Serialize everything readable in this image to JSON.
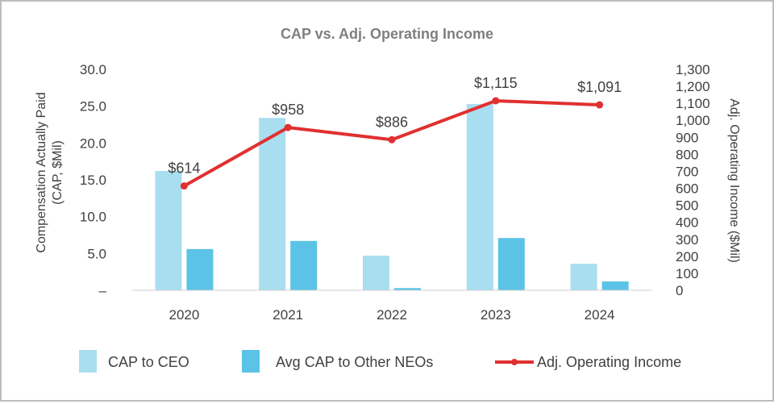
{
  "chart_data": {
    "type": "bar",
    "title": "CAP vs. Adj. Operating Income",
    "categories": [
      "2020",
      "2021",
      "2022",
      "2023",
      "2024"
    ],
    "series": [
      {
        "name": "CAP to CEO",
        "type": "bar",
        "axis": "left",
        "color": "#a8def0",
        "values": [
          16.2,
          23.4,
          4.7,
          25.3,
          3.6
        ]
      },
      {
        "name": "Avg CAP to Other NEOs",
        "type": "bar",
        "axis": "left",
        "color": "#5bc3e6",
        "values": [
          5.6,
          6.7,
          0.3,
          7.1,
          1.2
        ]
      },
      {
        "name": "Adj. Operating Income",
        "type": "line",
        "axis": "right",
        "color": "#e03030",
        "values": [
          614,
          958,
          886,
          1115,
          1091
        ],
        "labels": [
          "$614",
          "$958",
          "$886",
          "$1,115",
          "$1,091"
        ]
      }
    ],
    "y_left": {
      "label_lines": [
        "Compensation Actually Paid",
        "(CAP, $Mil)"
      ],
      "ylim": [
        0,
        30
      ],
      "ticks": [
        0,
        5,
        10,
        15,
        20,
        25,
        30
      ],
      "tick_labels": [
        "–",
        "5.0",
        "10.0",
        "15.0",
        "20.0",
        "25.0",
        "30.0"
      ]
    },
    "y_right": {
      "label": "Adj. Operating Income ($Mil)",
      "ylim": [
        0,
        1300
      ],
      "ticks": [
        0,
        100,
        200,
        300,
        400,
        500,
        600,
        700,
        800,
        900,
        1000,
        1100,
        1200,
        1300
      ],
      "tick_labels": [
        "0",
        "100",
        "200",
        "300",
        "400",
        "500",
        "600",
        "700",
        "800",
        "900",
        "1,000",
        "1,100",
        "1,200",
        "1,300"
      ]
    },
    "grid": false,
    "legend": {
      "position": "bottom",
      "items": [
        "CAP to CEO",
        "Avg CAP to Other NEOs",
        "Adj. Operating Income"
      ]
    }
  },
  "colors": {
    "title": "#7f7f7f",
    "text": "#404040",
    "baseline": "#d0d0d0",
    "frame": "#bdbdbd"
  }
}
